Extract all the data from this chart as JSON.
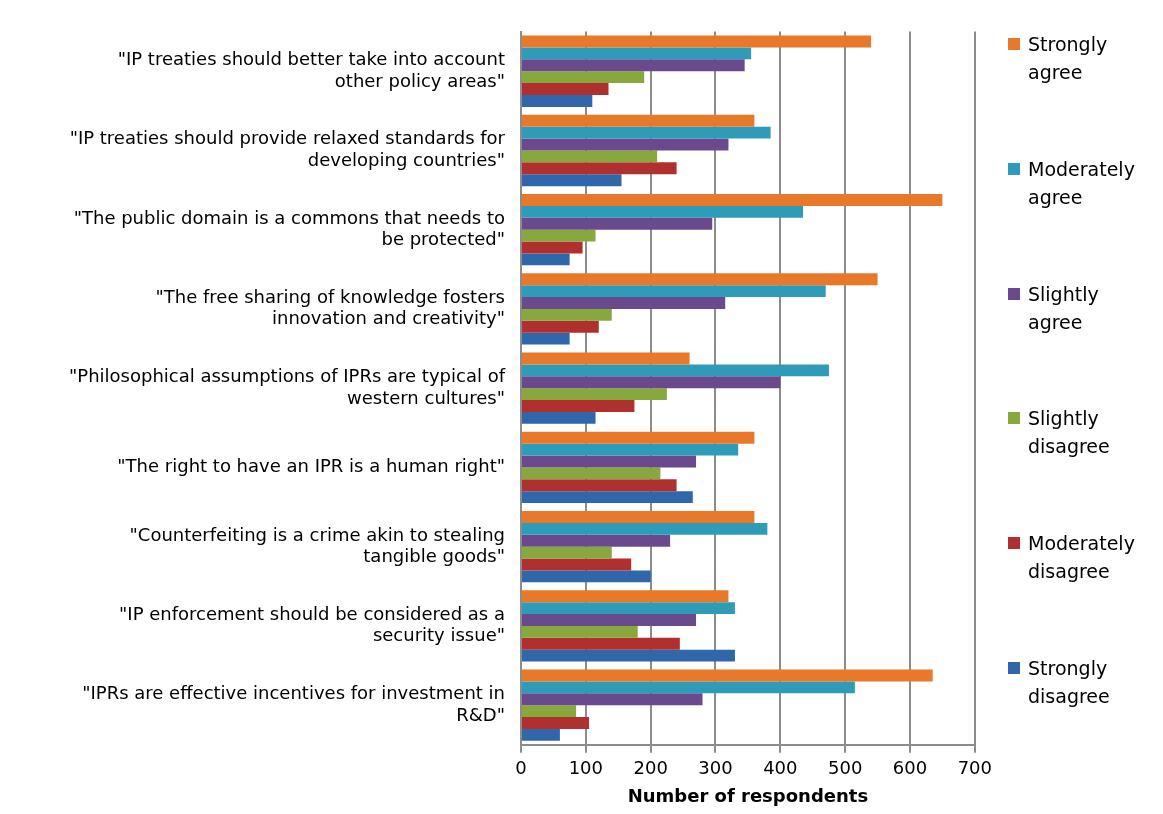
{
  "chart_data": {
    "type": "bar",
    "orientation": "horizontal",
    "categories": [
      "\"IP treaties should better take into account other policy areas\"",
      "\"IP treaties should provide relaxed standards for developing countries\"",
      "\"The public domain is a commons that needs to be protected\"",
      "\"The free sharing of knowledge fosters innovation and creativity\"",
      "\"Philosophical assumptions of IPRs are typical of western cultures\"",
      "\"The right to have an IPR is a human right\"",
      "\"Counterfeiting is a crime akin to stealing tangible goods\"",
      "\"IP enforcement should be considered as a security issue\"",
      "\"IPRs are effective incentives for investment in R&D\""
    ],
    "series": [
      {
        "name": "Strongly agree",
        "color": "#e8792a",
        "values": [
          540,
          360,
          650,
          550,
          260,
          360,
          360,
          320,
          635
        ]
      },
      {
        "name": "Moderately agree",
        "color": "#2e9bb8",
        "values": [
          355,
          385,
          435,
          470,
          475,
          335,
          380,
          330,
          515
        ]
      },
      {
        "name": "Slightly agree",
        "color": "#6a4a8c",
        "values": [
          345,
          320,
          295,
          315,
          400,
          270,
          230,
          270,
          280
        ]
      },
      {
        "name": "Slightly disagree",
        "color": "#86a83c",
        "values": [
          190,
          210,
          115,
          140,
          225,
          215,
          140,
          180,
          85
        ]
      },
      {
        "name": "Moderately disagree",
        "color": "#b0302f",
        "values": [
          135,
          240,
          95,
          120,
          175,
          240,
          170,
          245,
          105
        ]
      },
      {
        "name": "Strongly disagree",
        "color": "#3066aa",
        "values": [
          110,
          155,
          75,
          75,
          115,
          265,
          200,
          330,
          60
        ]
      }
    ],
    "xlabel": "Number of respondents",
    "xlim": [
      0,
      700
    ],
    "xticks": [
      0,
      100,
      200,
      300,
      400,
      500,
      600,
      700
    ],
    "grid": "x",
    "legend": "right"
  }
}
